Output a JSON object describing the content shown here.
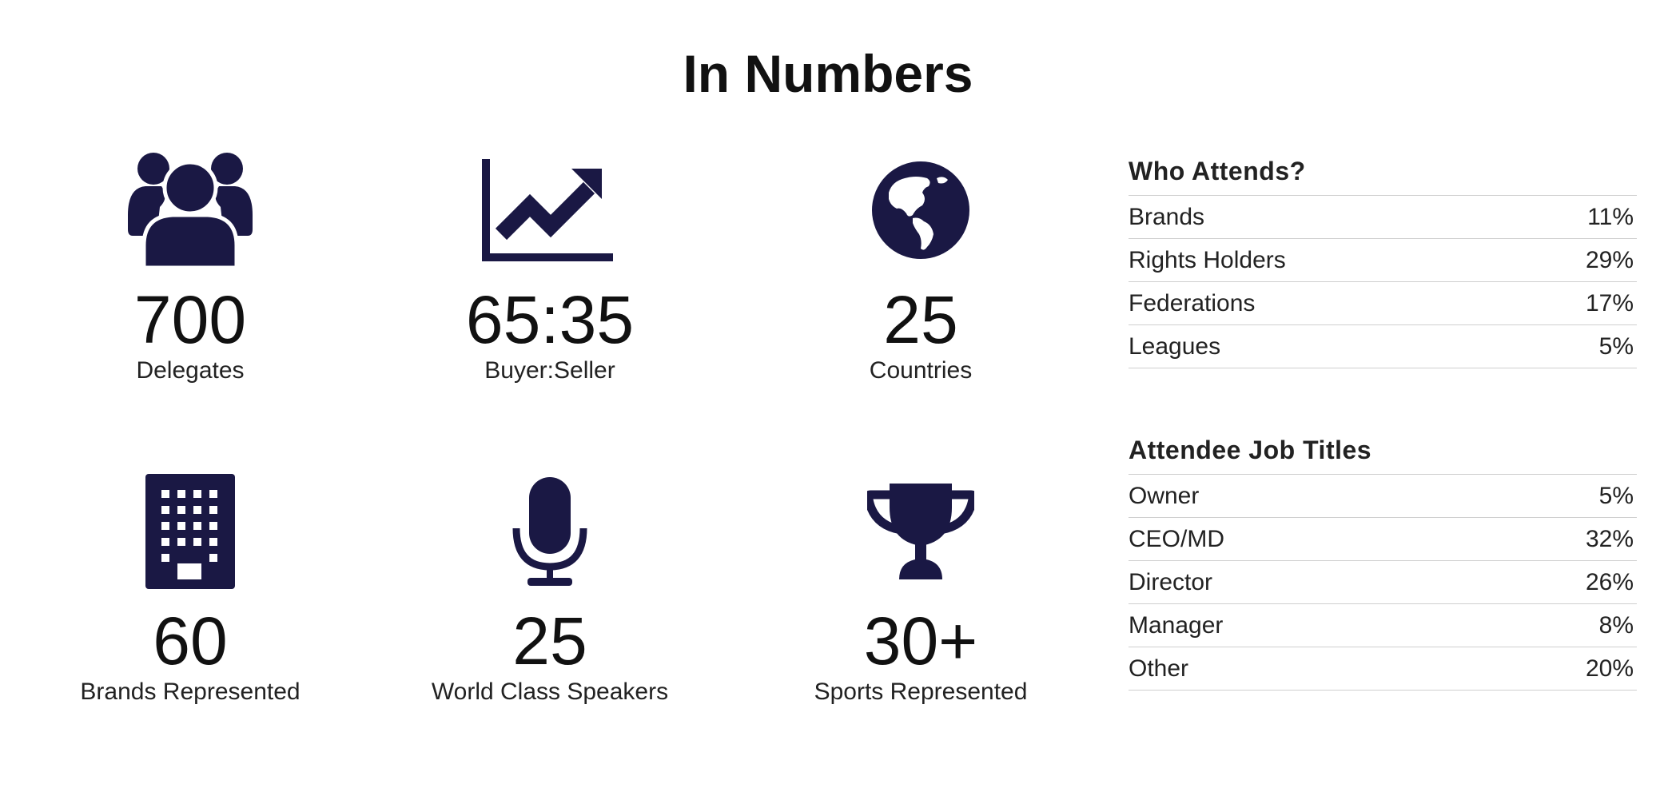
{
  "title": "In Numbers",
  "colors": {
    "icon": "#1a1844",
    "text": "#111111",
    "rule": "#cfcfcf"
  },
  "stats": [
    {
      "icon": "people-icon",
      "value": "700",
      "label": "Delegates"
    },
    {
      "icon": "growth-chart-icon",
      "value": "65:35",
      "label": "Buyer:Seller"
    },
    {
      "icon": "globe-icon",
      "value": "25",
      "label": "Countries"
    },
    {
      "icon": "building-icon",
      "value": "60",
      "label": "Brands Represented"
    },
    {
      "icon": "microphone-icon",
      "value": "25",
      "label": "World Class Speakers"
    },
    {
      "icon": "trophy-icon",
      "value": "30+",
      "label": "Sports Represented"
    }
  ],
  "who_attends": {
    "heading": "Who Attends?",
    "rows": [
      {
        "label": "Brands",
        "value": "11%"
      },
      {
        "label": "Rights Holders",
        "value": "29%"
      },
      {
        "label": "Federations",
        "value": "17%"
      },
      {
        "label": "Leagues",
        "value": "5%"
      }
    ]
  },
  "job_titles": {
    "heading": "Attendee Job Titles",
    "rows": [
      {
        "label": "Owner",
        "value": "5%"
      },
      {
        "label": "CEO/MD",
        "value": "32%"
      },
      {
        "label": "Director",
        "value": "26%"
      },
      {
        "label": "Manager",
        "value": "8%"
      },
      {
        "label": "Other",
        "value": "20%"
      }
    ]
  }
}
